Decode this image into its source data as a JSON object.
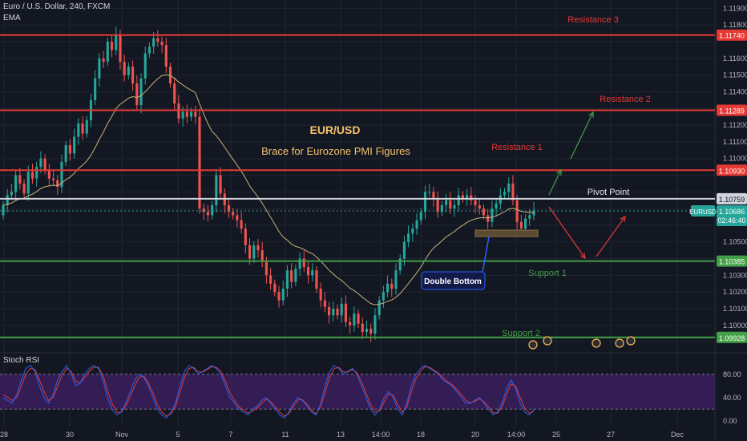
{
  "header": {
    "symbol_line": "Euro / U.S. Dollar, 240, FXCM",
    "indicator_label": "EMA"
  },
  "annotations": {
    "title": "EUR/USD",
    "subtitle": "Brace for Eurozone PMI Figures",
    "double_bottom": "Double Bottom"
  },
  "colors": {
    "background": "#131722",
    "grid": "#1f2433",
    "up_candle": "#26a69a",
    "down_candle": "#ef5350",
    "resistance": "#e53935",
    "support": "#43a047",
    "pivot": "#d1d4dc",
    "ema": "#c9b27a",
    "rsi_band": "#3b1f5e",
    "rsi_k": "#2962ff",
    "rsi_d": "#e53935",
    "title": "#f5c26b",
    "price_badge": "#26a69a"
  },
  "chart_data": [
    {
      "type": "candlestick",
      "title": "Euro / U.S. Dollar, 240, FXCM",
      "y_axis_ticks": [
        1.119,
        1.118,
        1.117,
        1.116,
        1.115,
        1.114,
        1.113,
        1.112,
        1.111,
        1.11,
        1.109,
        1.108,
        1.107,
        1.106,
        1.105,
        1.104,
        1.103,
        1.102,
        1.101,
        1.1,
        1.099
      ],
      "ylim": [
        1.0985,
        1.1195
      ],
      "x_axis_ticks": [
        "28",
        "30",
        "Nov",
        "5",
        "7",
        "11",
        "13",
        "14:00",
        "18",
        "20",
        "14:00",
        "25",
        "27",
        "Dec"
      ],
      "levels": [
        {
          "label": "Resistance 3",
          "value": 1.1174,
          "price_label": "1.11740",
          "kind": "resistance"
        },
        {
          "label": "Resistance 2",
          "value": 1.11289,
          "price_label": "1.11289",
          "kind": "resistance"
        },
        {
          "label": "Resistance 1",
          "value": 1.1093,
          "price_label": "1.10930",
          "kind": "resistance"
        },
        {
          "label": "Pivot Point",
          "value": 1.10759,
          "price_label": "1.10759",
          "kind": "pivot"
        },
        {
          "label": "Support 1",
          "value": 1.10385,
          "price_label": "1.10385",
          "kind": "support"
        },
        {
          "label": "Support 2",
          "value": 1.09928,
          "price_label": "1.09928",
          "kind": "support"
        }
      ],
      "current_price": {
        "symbol": "EURUSD",
        "price": "1.10686",
        "countdown": "02:46:40",
        "value": 1.10686
      },
      "ema_label": "EMA",
      "closes": [
        1.1072,
        1.1078,
        1.108,
        1.109,
        1.1085,
        1.1079,
        1.1092,
        1.1088,
        1.1095,
        1.11,
        1.1093,
        1.1088,
        1.1087,
        1.1083,
        1.1098,
        1.1108,
        1.1103,
        1.1113,
        1.1121,
        1.1115,
        1.1123,
        1.1135,
        1.1148,
        1.116,
        1.1158,
        1.117,
        1.1165,
        1.1174,
        1.1158,
        1.115,
        1.1155,
        1.1145,
        1.1132,
        1.1148,
        1.1163,
        1.1167,
        1.1172,
        1.117,
        1.1168,
        1.1155,
        1.1145,
        1.1133,
        1.1124,
        1.1128,
        1.1125,
        1.1128,
        1.1125,
        1.107,
        1.1068,
        1.1066,
        1.1072,
        1.109,
        1.1079,
        1.1072,
        1.1068,
        1.1066,
        1.1063,
        1.1058,
        1.1048,
        1.104,
        1.1048,
        1.1045,
        1.1038,
        1.103,
        1.1025,
        1.102,
        1.1015,
        1.1022,
        1.1033,
        1.1026,
        1.1034,
        1.104,
        1.1035,
        1.103,
        1.1033,
        1.1022,
        1.1015,
        1.1011,
        1.1006,
        1.101,
        1.1006,
        1.1013,
        1.1002,
        1.1,
        1.1007,
        1.1001,
        1.0996,
        1.0998,
        1.0995,
        1.1006,
        1.1015,
        1.102,
        1.1025,
        1.1022,
        1.1033,
        1.104,
        1.105,
        1.1055,
        1.1058,
        1.1063,
        1.1068,
        1.108,
        1.108,
        1.1076,
        1.1068,
        1.1072,
        1.1075,
        1.107,
        1.1072,
        1.1078,
        1.1076,
        1.1078,
        1.1075,
        1.1072,
        1.107,
        1.1066,
        1.1062,
        1.107,
        1.1073,
        1.1078,
        1.108,
        1.1085,
        1.1075,
        1.1062,
        1.1058,
        1.1064,
        1.1066,
        1.1069
      ]
    },
    {
      "type": "line",
      "title": "Stoch RSI",
      "y_axis_ticks": [
        80.0,
        40.0,
        0.0
      ],
      "ylim": [
        -10,
        110
      ],
      "band": [
        20,
        80
      ],
      "series": [
        {
          "name": "K",
          "values": [
            40,
            35,
            30,
            45,
            70,
            90,
            95,
            85,
            60,
            40,
            30,
            45,
            70,
            85,
            95,
            80,
            60,
            65,
            80,
            90,
            95,
            90,
            70,
            40,
            20,
            10,
            15,
            30,
            50,
            70,
            80,
            75,
            60,
            40,
            20,
            10,
            5,
            15,
            30,
            60,
            85,
            95,
            90,
            80,
            85,
            90,
            95,
            90,
            80,
            60,
            40,
            30,
            20,
            15,
            10,
            20,
            25,
            35,
            40,
            30,
            20,
            10,
            5,
            15,
            30,
            40,
            35,
            25,
            15,
            10,
            30,
            60,
            85,
            95,
            90,
            80,
            85,
            90,
            80,
            60,
            40,
            20,
            10,
            20,
            40,
            50,
            40,
            20,
            10,
            30,
            60,
            80,
            90,
            95,
            90,
            85,
            80,
            70,
            65,
            60,
            50,
            40,
            30,
            30,
            35,
            40,
            30,
            20,
            10,
            15,
            30,
            55,
            70,
            55,
            30,
            15,
            10,
            20
          ]
        },
        {
          "name": "D",
          "values": [
            45,
            40,
            35,
            40,
            60,
            80,
            90,
            88,
            70,
            50,
            35,
            40,
            60,
            78,
            90,
            85,
            68,
            65,
            75,
            85,
            92,
            92,
            78,
            52,
            30,
            15,
            14,
            25,
            42,
            60,
            75,
            77,
            65,
            48,
            28,
            15,
            8,
            12,
            25,
            50,
            75,
            90,
            92,
            84,
            84,
            88,
            93,
            92,
            85,
            68,
            48,
            35,
            24,
            18,
            13,
            17,
            22,
            30,
            37,
            33,
            24,
            15,
            8,
            12,
            25,
            36,
            36,
            28,
            18,
            12,
            24,
            50,
            75,
            90,
            92,
            84,
            84,
            88,
            83,
            67,
            48,
            28,
            15,
            17,
            33,
            46,
            44,
            28,
            15,
            24,
            50,
            72,
            85,
            93,
            92,
            87,
            82,
            74,
            67,
            62,
            54,
            45,
            35,
            31,
            33,
            38,
            33,
            24,
            14,
            13,
            24,
            45,
            63,
            60,
            40,
            22,
            13,
            16
          ]
        }
      ]
    }
  ]
}
